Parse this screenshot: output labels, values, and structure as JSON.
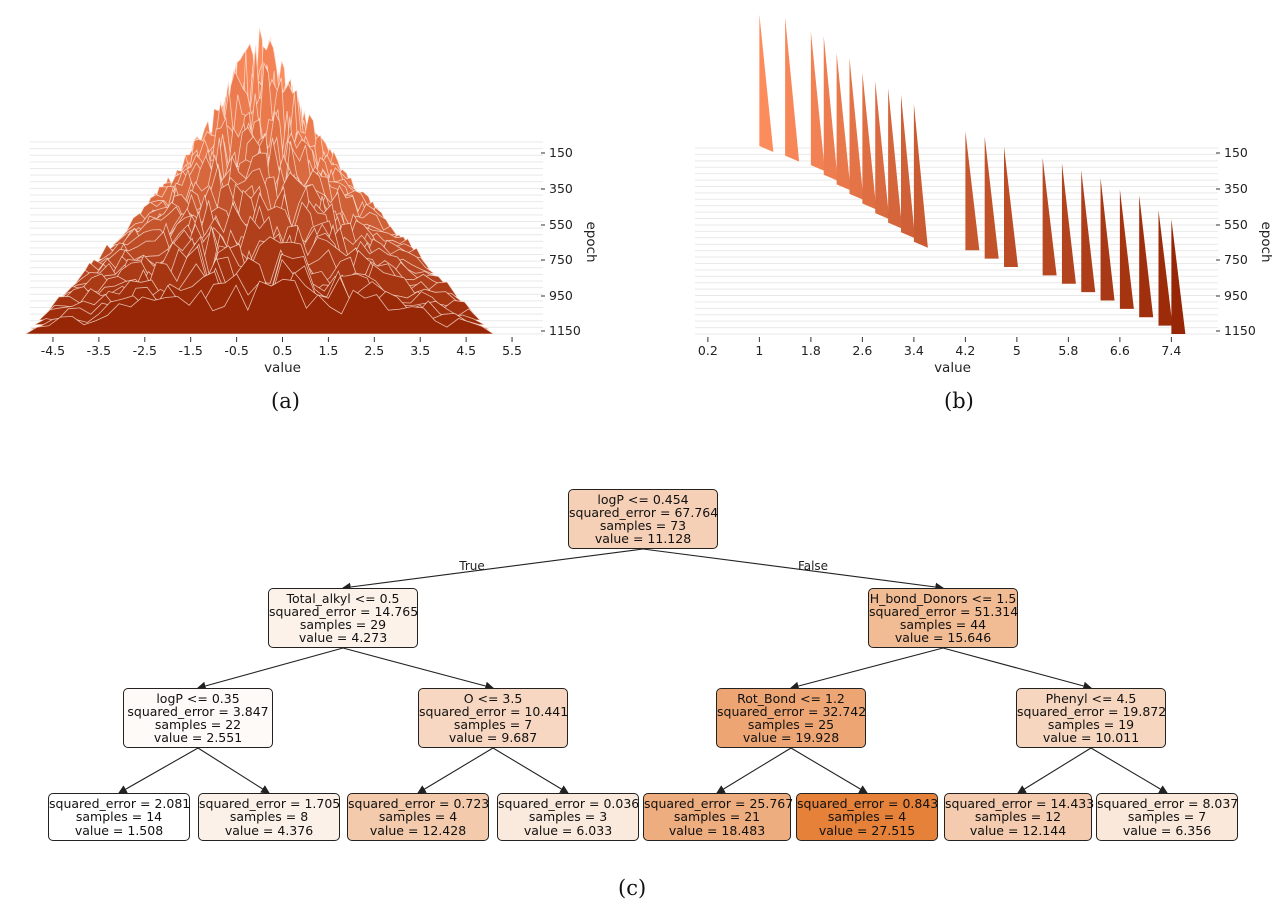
{
  "chart_data": [
    {
      "type": "area",
      "subtype": "ridgeline-histogram",
      "panel_label": "(a)",
      "xlabel": "value",
      "ylabel": "epoch",
      "x_ticks": [
        "-4.5",
        "-3.5",
        "-2.5",
        "-1.5",
        "-0.5",
        "0.5",
        "1.5",
        "2.5",
        "3.5",
        "4.5",
        "5.5"
      ],
      "y_ticks": [
        "150",
        "350",
        "550",
        "750",
        "950",
        "1150"
      ],
      "xlim": [
        -5.0,
        6.0
      ],
      "epochs": [
        50,
        1200
      ],
      "description_series": "weight distribution histograms per epoch, spreading from narrow center to range about -4.5 to 4.8"
    },
    {
      "type": "area",
      "subtype": "ridgeline-histogram",
      "panel_label": "(b)",
      "xlabel": "value",
      "ylabel": "epoch",
      "x_ticks": [
        "0.2",
        "1",
        "1.8",
        "2.6",
        "3.4",
        "4.2",
        "5",
        "5.8",
        "6.6",
        "7.4"
      ],
      "y_ticks": [
        "150",
        "350",
        "550",
        "750",
        "950",
        "1150"
      ],
      "xlim": [
        0.0,
        8.0
      ],
      "peak_positions": [
        1.0,
        1.4,
        1.8,
        2.0,
        2.2,
        2.4,
        2.6,
        2.8,
        3.0,
        3.2,
        3.4,
        4.2,
        4.5,
        4.8,
        5.4,
        5.7,
        6.0,
        6.3,
        6.6,
        6.9,
        7.2,
        7.4
      ]
    },
    {
      "type": "tree",
      "panel_label": "(c)",
      "edge_labels": {
        "true": "True",
        "false": "False"
      },
      "nodes": [
        {
          "id": "root",
          "lines": [
            "logP <= 0.454",
            "squared_error = 67.764",
            "samples = 73",
            "value = 11.128"
          ],
          "value": 11.128
        },
        {
          "id": "n1",
          "lines": [
            "Total_alkyl <= 0.5",
            "squared_error = 14.765",
            "samples = 29",
            "value = 4.273"
          ],
          "value": 4.273
        },
        {
          "id": "n2",
          "lines": [
            "H_bond_Donors <= 1.5",
            "squared_error = 51.314",
            "samples = 44",
            "value = 15.646"
          ],
          "value": 15.646
        },
        {
          "id": "n3",
          "lines": [
            "logP <= 0.35",
            "squared_error = 3.847",
            "samples = 22",
            "value = 2.551"
          ],
          "value": 2.551
        },
        {
          "id": "n4",
          "lines": [
            "O <= 3.5",
            "squared_error = 10.441",
            "samples = 7",
            "value = 9.687"
          ],
          "value": 9.687
        },
        {
          "id": "n5",
          "lines": [
            "Rot_Bond <= 1.2",
            "squared_error = 32.742",
            "samples = 25",
            "value = 19.928"
          ],
          "value": 19.928
        },
        {
          "id": "n6",
          "lines": [
            "Phenyl <= 4.5",
            "squared_error = 19.872",
            "samples = 19",
            "value = 10.011"
          ],
          "value": 10.011
        },
        {
          "id": "l1",
          "lines": [
            "squared_error = 2.081",
            "samples = 14",
            "value = 1.508"
          ],
          "value": 1.508
        },
        {
          "id": "l2",
          "lines": [
            "squared_error = 1.705",
            "samples = 8",
            "value = 4.376"
          ],
          "value": 4.376
        },
        {
          "id": "l3",
          "lines": [
            "squared_error = 0.723",
            "samples = 4",
            "value = 12.428"
          ],
          "value": 12.428
        },
        {
          "id": "l4",
          "lines": [
            "squared_error = 0.036",
            "samples = 3",
            "value = 6.033"
          ],
          "value": 6.033
        },
        {
          "id": "l5",
          "lines": [
            "squared_error = 25.767",
            "samples = 21",
            "value = 18.483"
          ],
          "value": 18.483
        },
        {
          "id": "l6",
          "lines": [
            "squared_error = 0.843",
            "samples = 4",
            "value = 27.515"
          ],
          "value": 27.515
        },
        {
          "id": "l7",
          "lines": [
            "squared_error = 14.433",
            "samples = 12",
            "value = 12.144"
          ],
          "value": 12.144
        },
        {
          "id": "l8",
          "lines": [
            "squared_error = 8.037",
            "samples = 7",
            "value = 6.356"
          ],
          "value": 6.356
        }
      ],
      "edges": [
        [
          "root",
          "n1"
        ],
        [
          "root",
          "n2"
        ],
        [
          "n1",
          "n3"
        ],
        [
          "n1",
          "n4"
        ],
        [
          "n2",
          "n5"
        ],
        [
          "n2",
          "n6"
        ],
        [
          "n3",
          "l1"
        ],
        [
          "n3",
          "l2"
        ],
        [
          "n4",
          "l3"
        ],
        [
          "n4",
          "l4"
        ],
        [
          "n5",
          "l5"
        ],
        [
          "n5",
          "l6"
        ],
        [
          "n6",
          "l7"
        ],
        [
          "n6",
          "l8"
        ]
      ],
      "color_range": [
        "#ffffff",
        "#e58139"
      ]
    }
  ]
}
